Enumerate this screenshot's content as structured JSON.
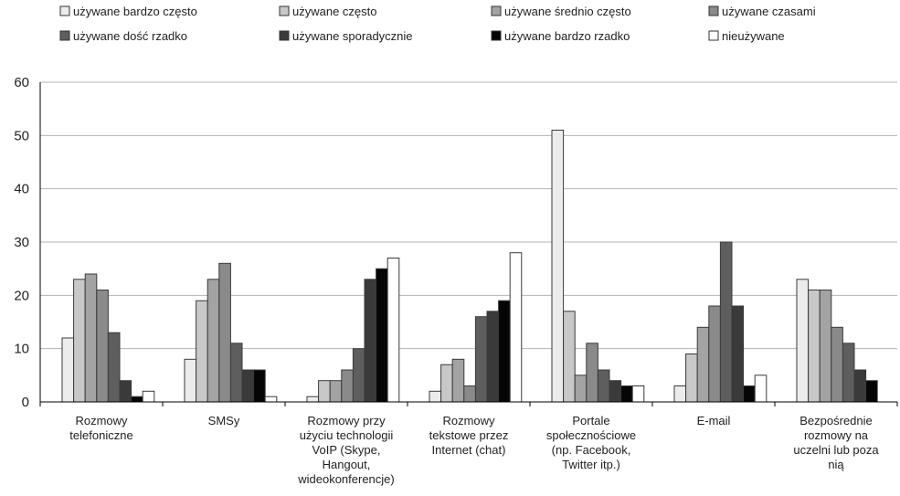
{
  "chart_data": {
    "type": "bar",
    "categories": [
      [
        "Rozmowy",
        "telefoniczne"
      ],
      [
        "SMSy"
      ],
      [
        "Rozmowy przy",
        "użyciu technologii",
        "VoIP (Skype,",
        "Hangout,",
        "wideokonferencje)"
      ],
      [
        "Rozmowy",
        "tekstowe przez",
        "Internet (chat)"
      ],
      [
        "Portale",
        "społecznościowe",
        "(np. Facebook,",
        "Twitter  itp.)"
      ],
      [
        "E-mail"
      ],
      [
        "Bezpośrednie",
        "rozmowy na",
        "uczelni lub poza",
        "nią"
      ]
    ],
    "series": [
      {
        "name": "używane bardzo często",
        "color": "#ececec",
        "values": [
          12,
          8,
          1,
          2,
          51,
          3,
          23
        ]
      },
      {
        "name": "używane często",
        "color": "#c8c8c8",
        "values": [
          23,
          19,
          4,
          7,
          17,
          9,
          21
        ]
      },
      {
        "name": "używane średnio często",
        "color": "#a3a3a3",
        "values": [
          24,
          23,
          4,
          8,
          5,
          14,
          21
        ]
      },
      {
        "name": "używane czasami",
        "color": "#8a8a8a",
        "values": [
          21,
          26,
          6,
          3,
          11,
          18,
          14
        ]
      },
      {
        "name": "używane dość rzadko",
        "color": "#5e5e5e",
        "values": [
          13,
          11,
          10,
          16,
          6,
          30,
          11
        ]
      },
      {
        "name": "używane sporadycznie",
        "color": "#3a3a3a",
        "values": [
          4,
          6,
          23,
          17,
          4,
          18,
          6
        ]
      },
      {
        "name": "używane bardzo rzadko",
        "color": "#050505",
        "values": [
          1,
          6,
          25,
          19,
          3,
          3,
          4
        ]
      },
      {
        "name": "nieużywane",
        "color": "#ffffff",
        "values": [
          2,
          1,
          27,
          28,
          3,
          5,
          0
        ]
      }
    ],
    "ylim": [
      0,
      60
    ],
    "yticks": [
      0,
      10,
      20,
      30,
      40,
      50,
      60
    ],
    "grid": true,
    "legend_position": "top",
    "title": "",
    "xlabel": "",
    "ylabel": ""
  }
}
